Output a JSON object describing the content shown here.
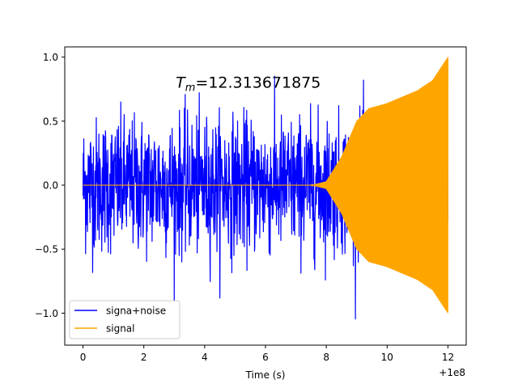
{
  "chart_data": {
    "type": "line",
    "title": "",
    "xlabel": "Time (s)",
    "ylabel": "",
    "xlim": [
      -0.6,
      12.6
    ],
    "ylim": [
      -1.25,
      1.08
    ],
    "x_offset_label": "+1e8",
    "xticks": [
      0,
      2,
      4,
      6,
      8,
      10,
      12
    ],
    "xtick_labels": [
      "0",
      "2",
      "4",
      "6",
      "8",
      "10",
      "12"
    ],
    "yticks": [
      -1.0,
      -0.5,
      0.0,
      0.5,
      1.0
    ],
    "ytick_labels": [
      "−1.0",
      "−0.5",
      "0.0",
      "0.5",
      "1.0"
    ],
    "annotation": {
      "text_main": "T",
      "text_sub": "m",
      "text_value": "=12.313671875",
      "x": 3.05,
      "y": 0.8
    },
    "series": [
      {
        "name": "signa+noise",
        "color": "#0000ff",
        "x_range": [
          0,
          12
        ],
        "kind": "noise",
        "noise_std": 0.26,
        "peak_max": 1.0,
        "peak_min": -1.14
      },
      {
        "name": "signal",
        "color": "#ffa500",
        "x_range": [
          0,
          12
        ],
        "kind": "chirp",
        "envelope": [
          [
            0,
            0.0
          ],
          [
            7.5,
            0.0
          ],
          [
            8.0,
            0.03
          ],
          [
            8.5,
            0.22
          ],
          [
            9.0,
            0.5
          ],
          [
            9.4,
            0.6
          ],
          [
            10.0,
            0.64
          ],
          [
            11.0,
            0.74
          ],
          [
            11.5,
            0.82
          ],
          [
            12.0,
            1.0
          ]
        ]
      }
    ],
    "legend": {
      "position": "lower-left",
      "entries": [
        "signa+noise",
        "signal"
      ]
    }
  }
}
